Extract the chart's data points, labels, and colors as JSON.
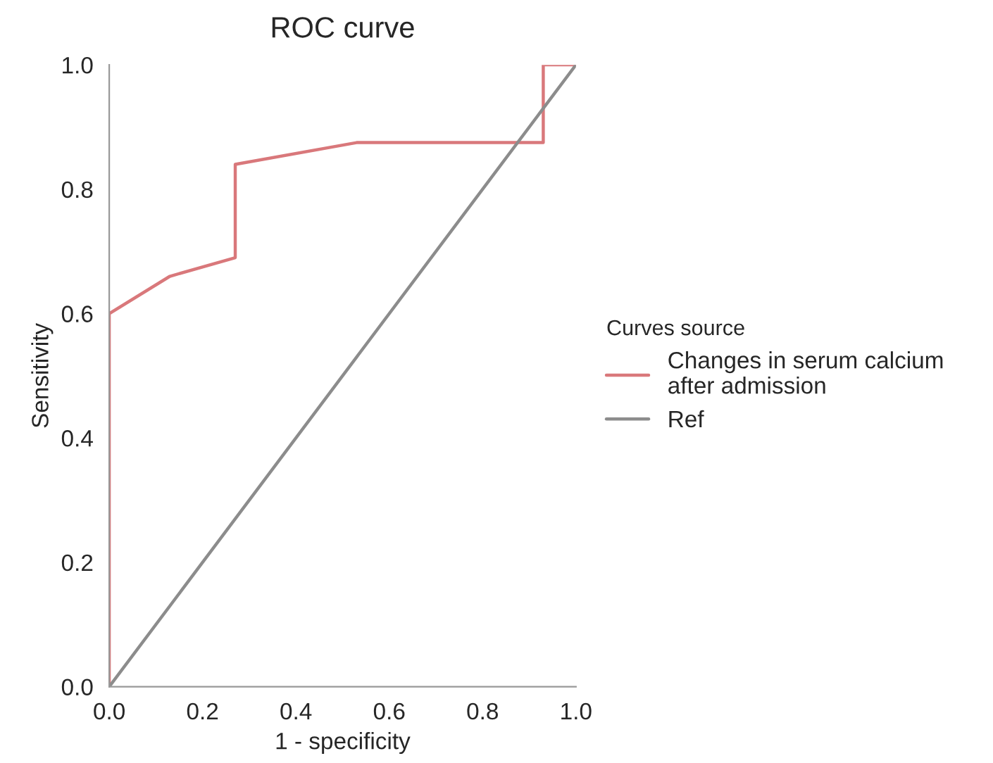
{
  "chart_data": {
    "type": "line",
    "title": "ROC curve",
    "xlabel": "1 - specificity",
    "ylabel": "Sensitivity",
    "legend_title": "Curves source",
    "series": [
      {
        "name": "Changes in serum calcium\nafter admission",
        "color": "#d9787b",
        "x": [
          0,
          0,
          0.13,
          0.27,
          0.27,
          0.53,
          0.93,
          0.93,
          1
        ],
        "values": [
          0,
          0.6,
          0.66,
          0.69,
          0.84,
          0.875,
          0.875,
          1,
          1
        ]
      },
      {
        "name": "Ref",
        "color": "#8c8c8c",
        "x": [
          0,
          1
        ],
        "values": [
          0,
          1
        ]
      }
    ],
    "xlim": [
      0,
      1
    ],
    "ylim": [
      0,
      1
    ],
    "xticks": [
      {
        "value": 0,
        "label": "0.0"
      },
      0.2,
      0.4,
      0.6,
      0.8,
      {
        "value": 1,
        "label": "1.0"
      }
    ],
    "yticks": [
      {
        "value": 0,
        "label": "0.0"
      },
      0.2,
      0.4,
      0.6,
      0.8,
      {
        "value": 1,
        "label": "1.0"
      }
    ],
    "grid": false,
    "legend": "right"
  }
}
